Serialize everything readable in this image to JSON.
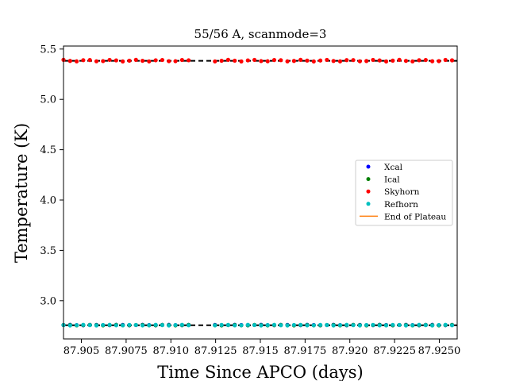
{
  "chart_data": {
    "type": "scatter",
    "title": "55/56 A, scanmode=3",
    "xlabel": "Time Since APCO (days)",
    "ylabel": "Temperature (K)",
    "xlim": [
      87.904,
      87.926
    ],
    "ylim": [
      2.62,
      5.53
    ],
    "x_ticks": [
      87.905,
      87.9075,
      87.91,
      87.9125,
      87.915,
      87.9175,
      87.92,
      87.9225,
      87.925
    ],
    "x_tick_labels": [
      "87.905",
      "87.9075",
      "87.910",
      "87.9125",
      "87.915",
      "87.9175",
      "87.920",
      "87.9225",
      "87.9250"
    ],
    "y_ticks": [
      3.0,
      3.5,
      4.0,
      4.5,
      5.0,
      5.5
    ],
    "y_tick_labels": [
      "3.0",
      "3.5",
      "4.0",
      "4.5",
      "5.0",
      "5.5"
    ],
    "legend_position": "center-right",
    "sampling": {
      "x_start": 87.904,
      "x_end": 87.926,
      "step": 0.000368,
      "gap_start": 87.9113,
      "gap_end": 87.9123
    },
    "series": [
      {
        "name": "Xcal",
        "color": "#0000ff",
        "marker": "dot",
        "base": 2.758,
        "amp": 0.002
      },
      {
        "name": "Ical",
        "color": "#008000",
        "marker": "dot",
        "base": 2.757,
        "amp": 0.002
      },
      {
        "name": "Skyhorn",
        "color": "#ff0000",
        "marker": "dot",
        "base": 5.385,
        "amp": 0.008
      },
      {
        "name": "Refhorn",
        "color": "#00bfbf",
        "marker": "dot",
        "base": 2.757,
        "amp": 0.003
      },
      {
        "name": "End of Plateau",
        "color": "#ff7f0e",
        "marker": "line"
      }
    ],
    "reference_lines": [
      {
        "y": 5.383,
        "color": "#000000",
        "style": "dashed"
      },
      {
        "y": 2.756,
        "color": "#000000",
        "style": "dashed"
      }
    ]
  }
}
